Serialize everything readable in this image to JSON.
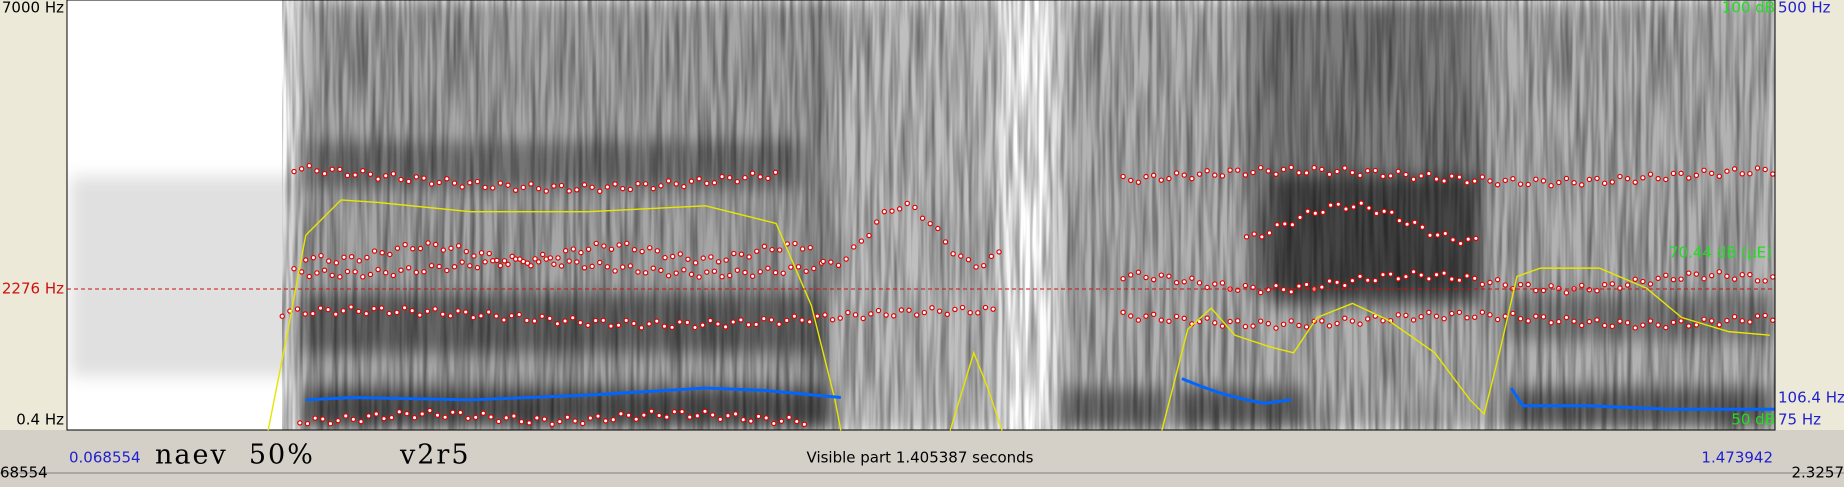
{
  "left_axis": {
    "top": "7000 Hz",
    "cursor": "2276 Hz",
    "bottom": "0.4 Hz"
  },
  "right_axis": {
    "intensity_top": "100 dB",
    "pitch_top": "500 Hz",
    "intensity_cursor": "70.44 dB (µE)",
    "pitch_cursor": "106.4 Hz",
    "pitch_bottom": "75 Hz",
    "intensity_bottom": "50 dB"
  },
  "time_bar": {
    "start": "0.068554",
    "annotation_1": "naev  50%",
    "annotation_2": "v2r5",
    "visible_part": "Visible part 1.405387 seconds",
    "end": "1.473942"
  },
  "window_bar": {
    "start": "68554",
    "end": "2.3257"
  }
}
